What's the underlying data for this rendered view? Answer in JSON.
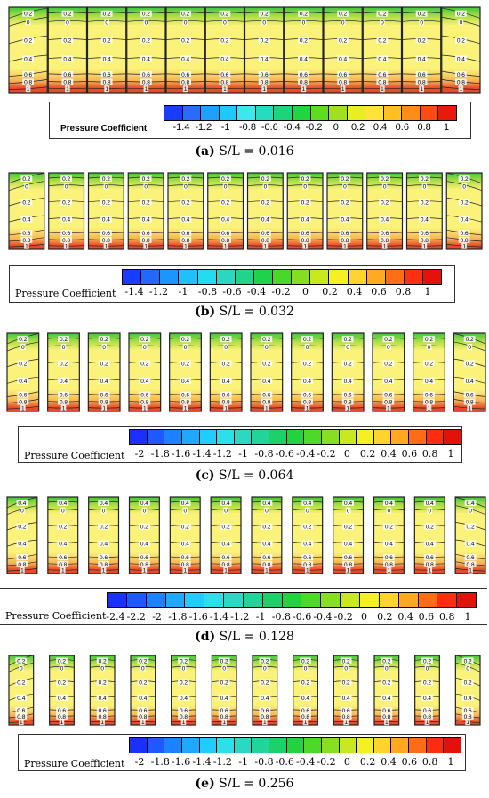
{
  "palette": {
    "p1": [
      "#1a3cff",
      "#2a6cff",
      "#1fa0ff",
      "#20c8ff",
      "#3ee6f0",
      "#25dcc0",
      "#1ed47a",
      "#21d53c",
      "#5fdc20",
      "#a0e020",
      "#e8ee22",
      "#ffe23a",
      "#ffc020",
      "#ff8c1a",
      "#ff4a12",
      "#e81a0c"
    ],
    "p2": [
      "#1a3cff",
      "#2268ff",
      "#1c96ff",
      "#20c0ff",
      "#22dcf0",
      "#2ad8c2",
      "#22d48a",
      "#1ed24c",
      "#48d82a",
      "#86de22",
      "#c8e820",
      "#f4f024",
      "#ffd430",
      "#ffaa20",
      "#ff6e16",
      "#ff3010",
      "#e4120a"
    ],
    "p3": [
      "#1a30ff",
      "#1f58ff",
      "#1c82ff",
      "#20a8ff",
      "#22ccff",
      "#2ce0ea",
      "#2ad8c4",
      "#22d49a",
      "#1ed06a",
      "#22d23e",
      "#4ed828",
      "#88de22",
      "#c8e822",
      "#f4f024",
      "#ffd430",
      "#ffa820",
      "#ff6c16",
      "#ff2c10",
      "#e0120a"
    ],
    "tile": {
      "green": "#3ec83a",
      "mid": "#b9e048",
      "yellow": "#fbf27a",
      "orange": "#f6b654",
      "red": "#e84a2a",
      "line": "#222222"
    }
  },
  "panels": [
    {
      "caption_letter": "(a)",
      "caption_text": "S/L = 0.016",
      "legend_label": "Pressure Coefficient",
      "ticks": [
        "-1.4",
        "-1.2",
        "-1",
        "-0.8",
        "-0.6",
        "-0.4",
        "-0.2",
        "0",
        "0.2",
        "0.4",
        "0.6",
        "0.8",
        "1"
      ],
      "contour_labels": [
        "0.2",
        "0",
        "0.2",
        "0.4",
        "0.6",
        "0.8",
        "1"
      ]
    },
    {
      "caption_letter": "(b)",
      "caption_text": "S/L = 0.032",
      "legend_label": "Pressure Coefficient",
      "ticks": [
        "-1.4",
        "-1.2",
        "-1",
        "-0.8",
        "-0.6",
        "-0.4",
        "-0.2",
        "0",
        "0.2",
        "0.4",
        "0.6",
        "0.8",
        "1"
      ],
      "contour_labels": [
        "0.2",
        "0",
        "0.2",
        "0.4",
        "0.6",
        "0.8",
        "1"
      ]
    },
    {
      "caption_letter": "(c)",
      "caption_text": "S/L = 0.064",
      "legend_label": "Pressure Coefficient",
      "ticks": [
        "-2",
        "-1.8",
        "-1.6",
        "-1.4",
        "-1.2",
        "-1",
        "-0.8",
        "-0.6",
        "-0.4",
        "-0.2",
        "0",
        "0.2",
        "0.4",
        "0.6",
        "0.8",
        "1"
      ],
      "contour_labels": [
        "0.2",
        "0",
        "0.2",
        "0.4",
        "0.6",
        "0.8",
        "1"
      ]
    },
    {
      "caption_letter": "(d)",
      "caption_text": "S/L = 0.128",
      "legend_label": "Pressure Coefficient",
      "ticks": [
        "-2.4",
        "-2.2",
        "-2",
        "-1.8",
        "-1.6",
        "-1.4",
        "-1.2",
        "-1",
        "-0.8",
        "-0.6",
        "-0.4",
        "-0.2",
        "0",
        "0.2",
        "0.4",
        "0.6",
        "0.8",
        "1"
      ],
      "contour_labels": [
        "0.4",
        "0",
        "0.2",
        "0.4",
        "0.6",
        "0.8",
        "1"
      ]
    },
    {
      "caption_letter": "(e)",
      "caption_text": "S/L = 0.256",
      "legend_label": "Pressure Coefficient",
      "ticks": [
        "-2",
        "-1.8",
        "-1.6",
        "-1.4",
        "-1.2",
        "-1",
        "-0.8",
        "-0.6",
        "-0.4",
        "-0.2",
        "0",
        "0.2",
        "0.4",
        "0.6",
        "0.8",
        "1"
      ],
      "contour_labels": [
        "0.2",
        "0",
        "0.2",
        "0.4",
        "0.6",
        "0.8",
        "1"
      ]
    }
  ]
}
